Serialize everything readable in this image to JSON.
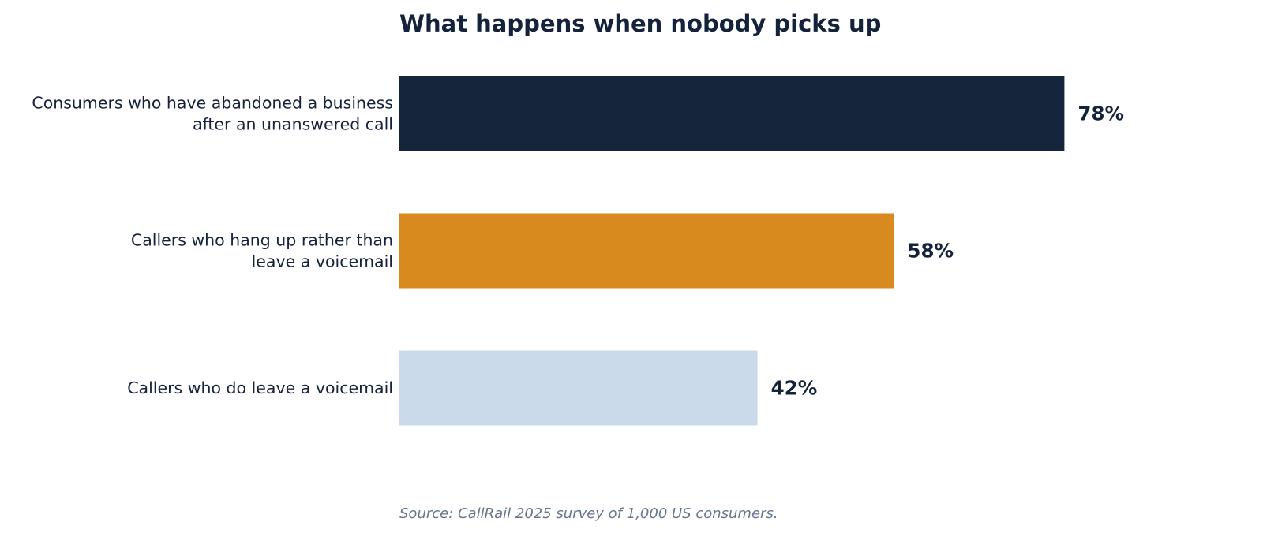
{
  "chart_data": {
    "type": "bar",
    "orientation": "horizontal",
    "title": "What happens when nobody picks up",
    "categories": [
      [
        "Consumers who have abandoned a business",
        "after an unanswered call"
      ],
      [
        "Callers who hang up rather than",
        "leave a voicemail"
      ],
      [
        "Callers who do leave a voicemail"
      ]
    ],
    "values": [
      78,
      58,
      42
    ],
    "value_labels": [
      "78%",
      "58%",
      "42%"
    ],
    "colors": [
      "#15253c",
      "#d88a1f",
      "#cbdaea"
    ],
    "xlim": [
      0,
      100
    ],
    "grid": false,
    "axes_visible": false,
    "source": "Source: CallRail 2025 survey of 1,000 US consumers."
  }
}
